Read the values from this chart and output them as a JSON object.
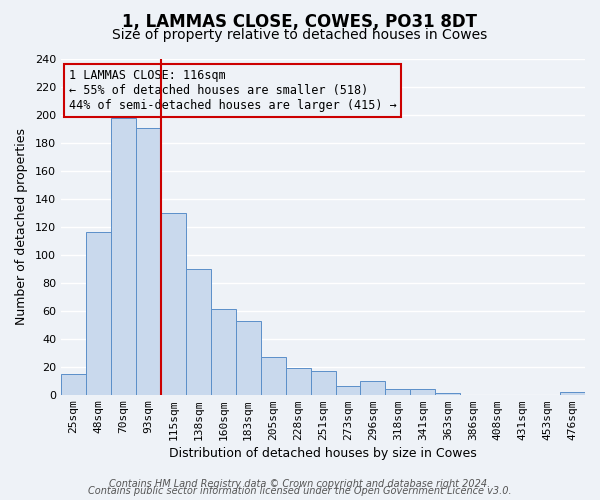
{
  "title": "1, LAMMAS CLOSE, COWES, PO31 8DT",
  "subtitle": "Size of property relative to detached houses in Cowes",
  "xlabel": "Distribution of detached houses by size in Cowes",
  "ylabel": "Number of detached properties",
  "categories": [
    "25sqm",
    "48sqm",
    "70sqm",
    "93sqm",
    "115sqm",
    "138sqm",
    "160sqm",
    "183sqm",
    "205sqm",
    "228sqm",
    "251sqm",
    "273sqm",
    "296sqm",
    "318sqm",
    "341sqm",
    "363sqm",
    "386sqm",
    "408sqm",
    "431sqm",
    "453sqm",
    "476sqm"
  ],
  "values": [
    15,
    116,
    198,
    191,
    130,
    90,
    61,
    53,
    27,
    19,
    17,
    6,
    10,
    4,
    4,
    1,
    0,
    0,
    0,
    0,
    2
  ],
  "bar_color": "#c9d9ed",
  "bar_edge_color": "#5b8fc9",
  "property_line_index": 4,
  "property_line_color": "#cc0000",
  "annotation_line1": "1 LAMMAS CLOSE: 116sqm",
  "annotation_line2": "← 55% of detached houses are smaller (518)",
  "annotation_line3": "44% of semi-detached houses are larger (415) →",
  "annotation_box_edgecolor": "#cc0000",
  "ylim": [
    0,
    240
  ],
  "yticks": [
    0,
    20,
    40,
    60,
    80,
    100,
    120,
    140,
    160,
    180,
    200,
    220,
    240
  ],
  "footer_line1": "Contains HM Land Registry data © Crown copyright and database right 2024.",
  "footer_line2": "Contains public sector information licensed under the Open Government Licence v3.0.",
  "bg_color": "#eef2f7",
  "grid_color": "#ffffff",
  "title_fontsize": 12,
  "subtitle_fontsize": 10,
  "axis_label_fontsize": 9,
  "tick_fontsize": 8,
  "annotation_fontsize": 8.5,
  "footer_fontsize": 7
}
